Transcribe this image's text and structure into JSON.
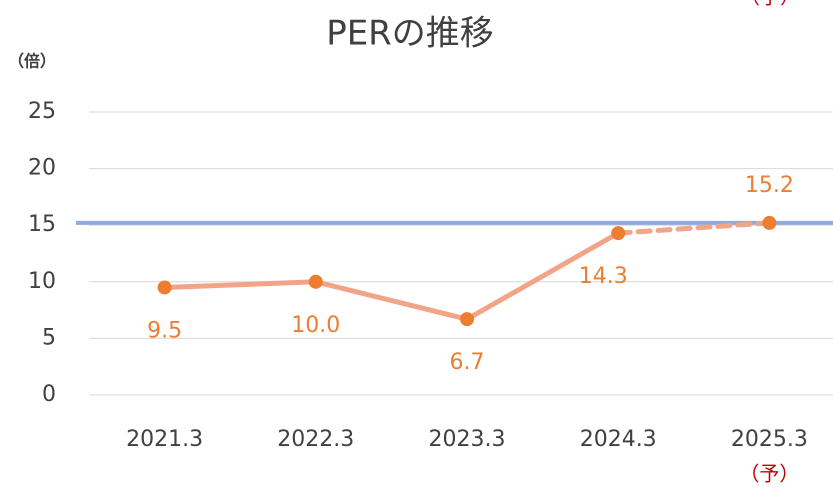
{
  "chart_data": {
    "type": "line",
    "title": "PERの推移",
    "y_label": "（倍）",
    "categories": [
      "2021.3",
      "2022.3",
      "2023.3",
      "2024.3",
      "2025.3"
    ],
    "series": [
      {
        "values": [
          9.5,
          10.0,
          6.7,
          14.3,
          15.2
        ],
        "value_labels": [
          "9.5",
          "10.0",
          "6.7",
          "14.3",
          "15.2"
        ],
        "color": "#f2a488",
        "marker_color": "#ed7d31",
        "label_color": "#ed7d31",
        "dashed_segments": [
          3
        ]
      }
    ],
    "reference_line": {
      "value": 15.2,
      "color": "#8faadc"
    },
    "annotations": [
      {
        "text": "（予）",
        "category": 4,
        "color": "#c00000"
      },
      {
        "text": "（予）",
        "color": "#c00000"
      }
    ],
    "ylim": [
      0,
      25
    ],
    "yticks": [
      0,
      5,
      10,
      15,
      20,
      25
    ],
    "grid": true
  }
}
